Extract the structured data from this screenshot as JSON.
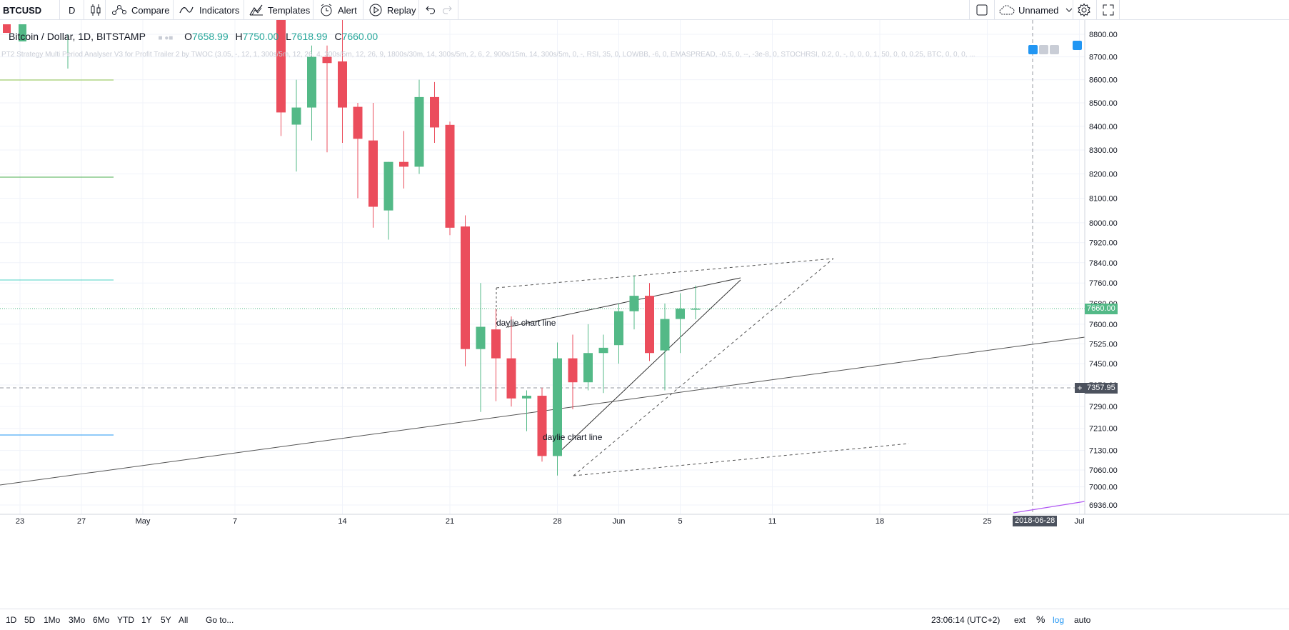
{
  "toolbar": {
    "symbol": "BTCUSD",
    "interval": "D",
    "compare": "Compare",
    "indicators": "Indicators",
    "templates": "Templates",
    "alert": "Alert",
    "replay": "Replay",
    "layout_name": "Unnamed"
  },
  "legend": {
    "title": "Bitcoin / Dollar, 1D, BITSTAMP",
    "open_label": "O",
    "open": "7658.99",
    "high_label": "H",
    "high": "7750.00",
    "low_label": "L",
    "low": "7618.99",
    "close_label": "C",
    "close": "7660.00",
    "indicator": "PT2 Strategy Multi Period Analyser V3 for Profit Trailer 2 by TWOC (3.05, -, 12, 1, 300s/5m, 12, 26, 4, 300s/5m, 12, 26, 9, 1800s/30m, 14, 300s/5m, 2, 6, 2, 900s/15m, 14, 300s/5m, 0, -, RSI, 35, 0, LOWBB, -6, 0, EMASPREAD, -0.5, 0, --, -3e-8, 0, STOCHRSI, 0.2, 0, -, 0, 0, 0, 1, 50, 0, 0, 0.25, BTC, 0, 0, 0, ..."
  },
  "price_axis": {
    "labels": [
      "8800.00",
      "8700.00",
      "8600.00",
      "8500.00",
      "8400.00",
      "8300.00",
      "8200.00",
      "8100.00",
      "8000.00",
      "7920.00",
      "7840.00",
      "7760.00",
      "7680.00",
      "7600.00",
      "7525.00",
      "7450.00",
      "7370.00",
      "7290.00",
      "7210.00",
      "7130.00",
      "7060.00",
      "7000.00",
      "6936.00"
    ],
    "last_price": "7660.00",
    "crosshair_price": "7357.95"
  },
  "time_axis": {
    "labels": [
      "23",
      "27",
      "May",
      "7",
      "14",
      "21",
      "28",
      "Jun",
      "5",
      "11",
      "18",
      "25",
      "Jul"
    ],
    "crosshair_date": "2018-06-28"
  },
  "annotations": {
    "label1": "daylie chart line",
    "label2": "daylie chart line"
  },
  "bottom_bar": {
    "ranges": [
      "1D",
      "5D",
      "1Mo",
      "3Mo",
      "6Mo",
      "YTD",
      "1Y",
      "5Y",
      "All"
    ],
    "goto": "Go to...",
    "clock": "23:06:14 (UTC+2)",
    "ext": "ext",
    "percent": "%",
    "log": "log",
    "auto": "auto"
  },
  "colors": {
    "up": "#53b987",
    "down": "#eb4d5c",
    "last_price_tag": "#53b987",
    "crosshair_tag": "#4c525e",
    "log_active": "#2196f3"
  },
  "chart_data": {
    "type": "candlestick",
    "candles": [
      {
        "date": "2018-05-10",
        "o": 9325,
        "h": 9365,
        "l": 8359,
        "c": 8459
      },
      {
        "date": "2018-05-11",
        "o": 8407,
        "h": 8600,
        "l": 8210,
        "c": 8480
      },
      {
        "date": "2018-05-12",
        "o": 8480,
        "h": 8750,
        "l": 8340,
        "c": 8700
      },
      {
        "date": "2018-05-13",
        "o": 8700,
        "h": 8750,
        "l": 8290,
        "c": 8673
      },
      {
        "date": "2018-05-14",
        "o": 8680,
        "h": 8880,
        "l": 8330,
        "c": 8480
      },
      {
        "date": "2018-05-15",
        "o": 8483,
        "h": 8500,
        "l": 8100,
        "c": 8347
      },
      {
        "date": "2018-05-16",
        "o": 8340,
        "h": 8500,
        "l": 7980,
        "c": 8065
      },
      {
        "date": "2018-05-17",
        "o": 8050,
        "h": 8250,
        "l": 7932,
        "c": 8250
      },
      {
        "date": "2018-05-18",
        "o": 8250,
        "h": 8380,
        "l": 8140,
        "c": 8230
      },
      {
        "date": "2018-05-19",
        "o": 8230,
        "h": 8600,
        "l": 8200,
        "c": 8525
      },
      {
        "date": "2018-05-20",
        "o": 8525,
        "h": 8590,
        "l": 8330,
        "c": 8395
      },
      {
        "date": "2018-05-21",
        "o": 8406,
        "h": 8420,
        "l": 7950,
        "c": 7980
      },
      {
        "date": "2018-05-22",
        "o": 7985,
        "h": 8030,
        "l": 7440,
        "c": 7505
      },
      {
        "date": "2018-05-23",
        "o": 7505,
        "h": 7760,
        "l": 7270,
        "c": 7590
      },
      {
        "date": "2018-05-24",
        "o": 7580,
        "h": 7660,
        "l": 7310,
        "c": 7470
      },
      {
        "date": "2018-05-25",
        "o": 7470,
        "h": 7630,
        "l": 7290,
        "c": 7320
      },
      {
        "date": "2018-05-26",
        "o": 7320,
        "h": 7350,
        "l": 7200,
        "c": 7330
      },
      {
        "date": "2018-05-27",
        "o": 7330,
        "h": 7360,
        "l": 7090,
        "c": 7110
      },
      {
        "date": "2018-05-28",
        "o": 7110,
        "h": 7530,
        "l": 7040,
        "c": 7470
      },
      {
        "date": "2018-05-29",
        "o": 7470,
        "h": 7560,
        "l": 7280,
        "c": 7380
      },
      {
        "date": "2018-05-30",
        "o": 7380,
        "h": 7600,
        "l": 7350,
        "c": 7490
      },
      {
        "date": "2018-05-31",
        "o": 7490,
        "h": 7560,
        "l": 7340,
        "c": 7510
      },
      {
        "date": "2018-06-01",
        "o": 7520,
        "h": 7680,
        "l": 7450,
        "c": 7650
      },
      {
        "date": "2018-06-02",
        "o": 7650,
        "h": 7790,
        "l": 7580,
        "c": 7710
      },
      {
        "date": "2018-06-03",
        "o": 7710,
        "h": 7760,
        "l": 7460,
        "c": 7490
      },
      {
        "date": "2018-06-04",
        "o": 7500,
        "h": 7680,
        "l": 7350,
        "c": 7620
      },
      {
        "date": "2018-06-05",
        "o": 7620,
        "h": 7720,
        "l": 7490,
        "c": 7660
      },
      {
        "date": "2018-06-06",
        "o": 7659,
        "h": 7750,
        "l": 7619,
        "c": 7660
      }
    ],
    "ylim": [
      6920,
      8820
    ],
    "y_scale": "log",
    "grid": true
  }
}
